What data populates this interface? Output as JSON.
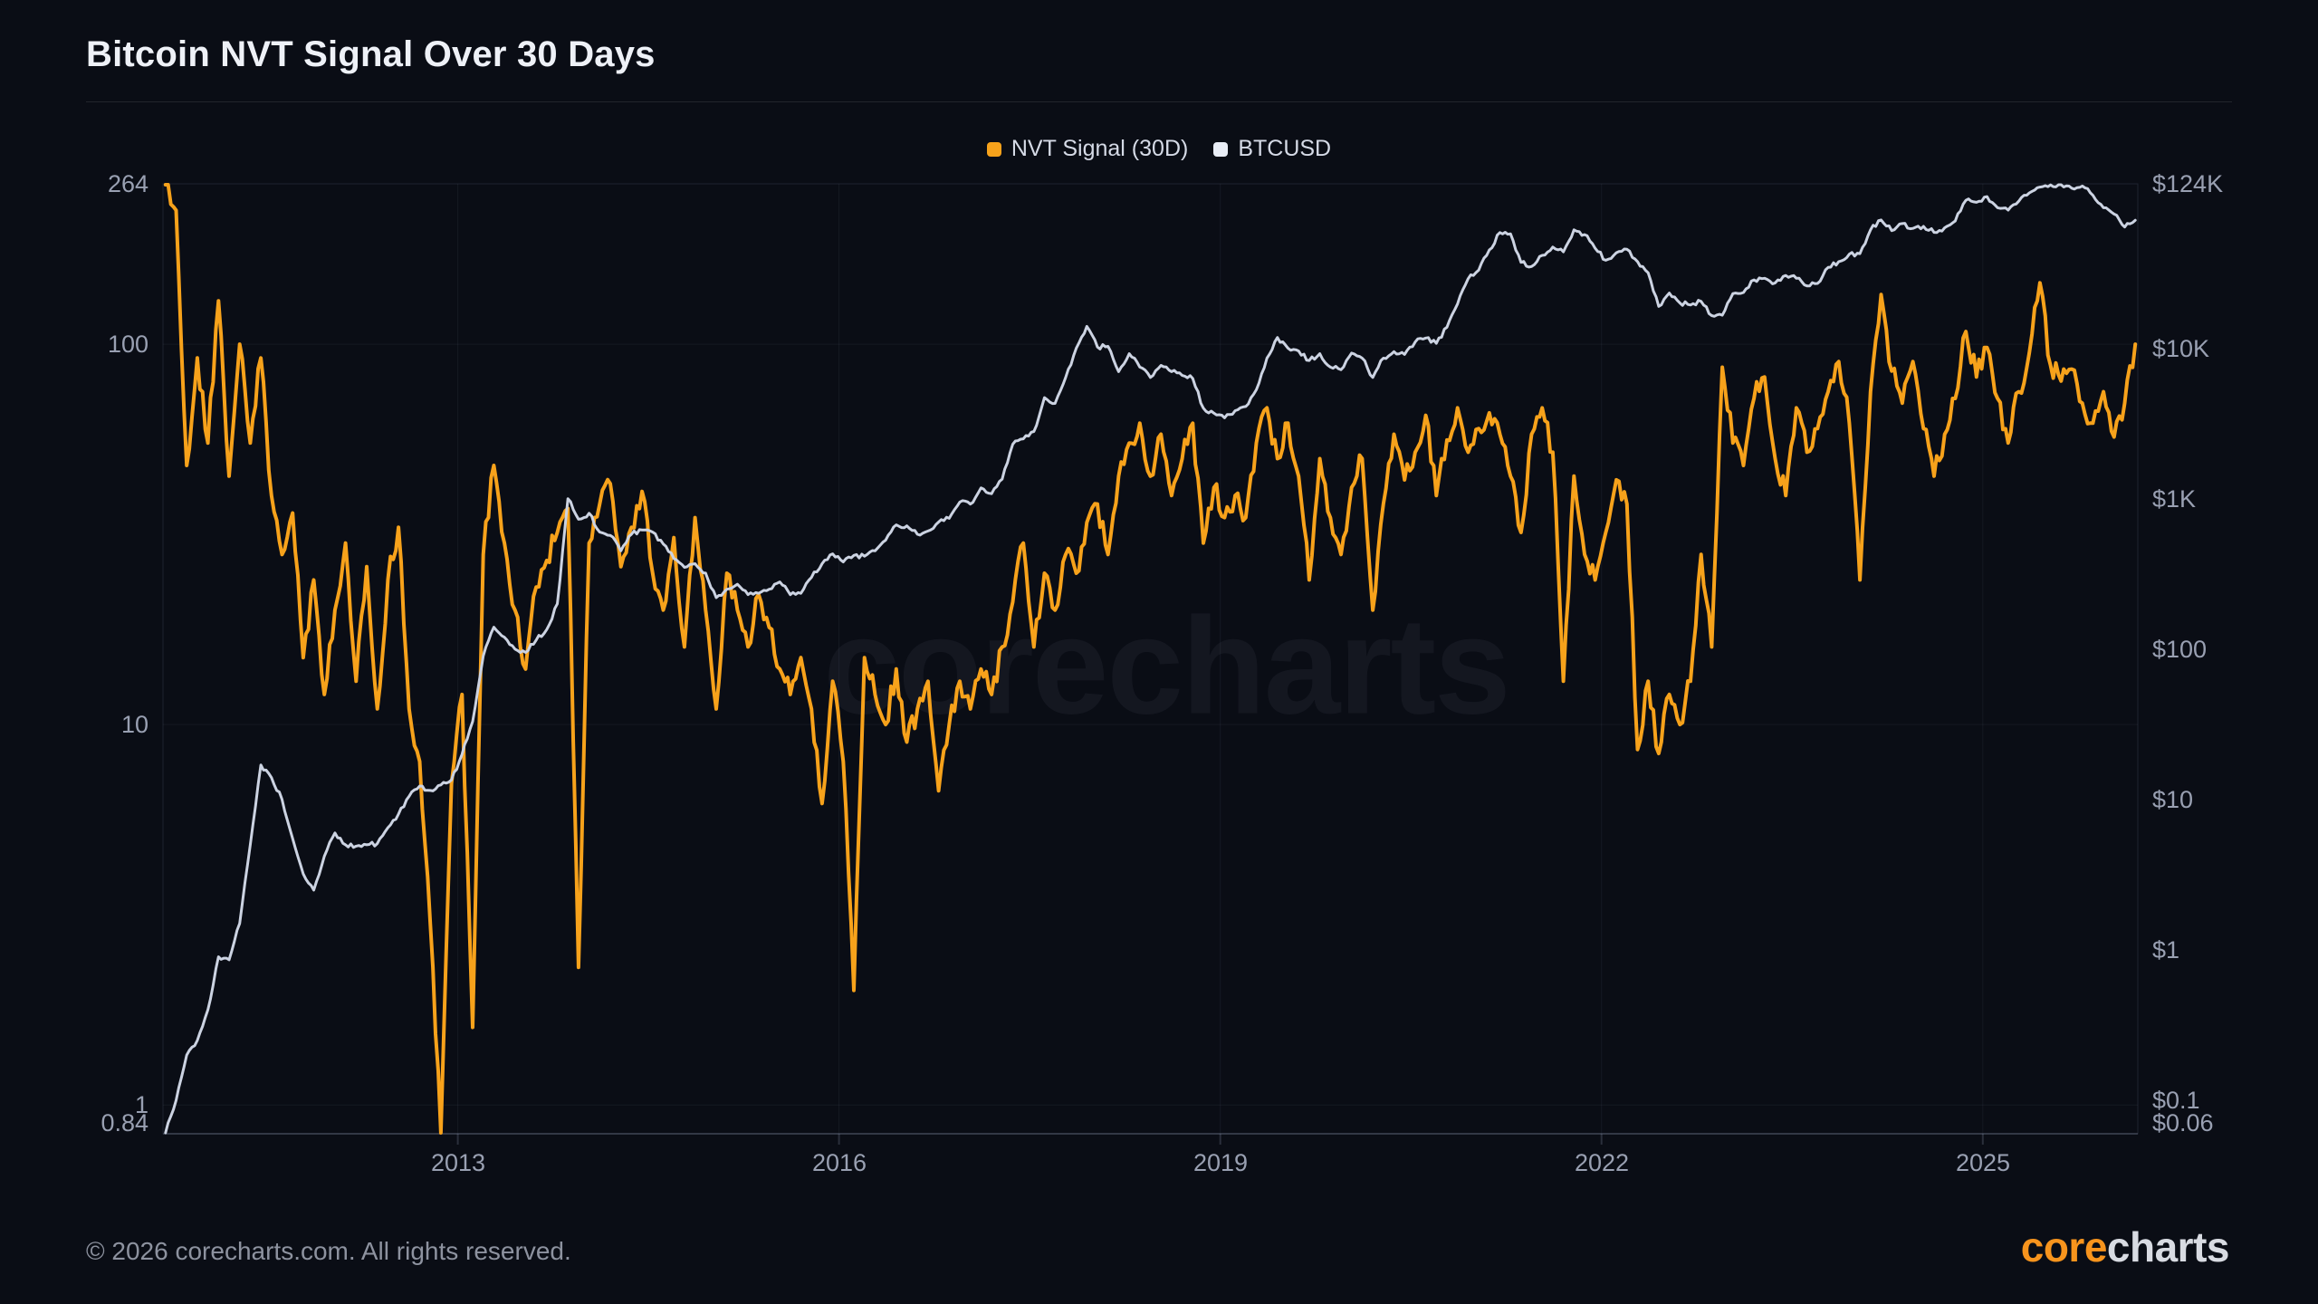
{
  "page": {
    "title": "Bitcoin NVT Signal Over 30 Days",
    "watermark": "corecharts",
    "footer": {
      "copyright": "© 2026 corecharts.com. All rights reserved."
    },
    "brand": {
      "part1": "core",
      "part2": "charts"
    },
    "background": "#0a0d15"
  },
  "legend": [
    {
      "label": "NVT Signal (30D)",
      "color": "#f7a21b"
    },
    {
      "label": "BTCUSD",
      "color": "#e9edf6"
    }
  ],
  "chart_data": {
    "type": "line",
    "title": "Bitcoin NVT Signal Over 30 Days",
    "legend_position": "top-center",
    "grid": true,
    "x_axis": {
      "min": 2010.68,
      "max": 2026.22,
      "ticks": [
        2013,
        2016,
        2019,
        2022,
        2025
      ]
    },
    "left_axis": {
      "name": "NVT Signal (30D)",
      "scale": "log",
      "min": 0.84,
      "max": 264,
      "ticks": [
        {
          "v": 264,
          "label": "264"
        },
        {
          "v": 100,
          "label": "100"
        },
        {
          "v": 10,
          "label": "10"
        },
        {
          "v": 1,
          "label": "1"
        },
        {
          "v": 0.84,
          "label": "0.84"
        }
      ]
    },
    "right_axis": {
      "name": "BTCUSD",
      "scale": "log",
      "min": 0.06,
      "max": 124000,
      "ticks": [
        {
          "v": 124000,
          "label": "$124K"
        },
        {
          "v": 10000,
          "label": "$10K"
        },
        {
          "v": 1000,
          "label": "$1K"
        },
        {
          "v": 100,
          "label": "$100"
        },
        {
          "v": 10,
          "label": "$10"
        },
        {
          "v": 1,
          "label": "$1"
        },
        {
          "v": 0.1,
          "label": "$0.1"
        },
        {
          "v": 0.06,
          "label": "$0.06"
        }
      ]
    },
    "x_start": 2010.7,
    "x_step_years": 0.0833333,
    "series": [
      {
        "name": "NVT Signal (30D)",
        "axis": "left",
        "color": "#f7a21b",
        "width": 4,
        "values": [
          264,
          225,
          48,
          92,
          55,
          130,
          45,
          100,
          55,
          92,
          40,
          28,
          36,
          15,
          24,
          12,
          20,
          30,
          13,
          26,
          11,
          24,
          33,
          11,
          8,
          3,
          0.84,
          7,
          12,
          1.6,
          28,
          48,
          30,
          20,
          14,
          23,
          27,
          32,
          37,
          2.3,
          30,
          38,
          43,
          26,
          33,
          41,
          25,
          20,
          31,
          16,
          35,
          20,
          11,
          25,
          20,
          16,
          22,
          18,
          14,
          12,
          15,
          11,
          6.2,
          13,
          8,
          2,
          15,
          12,
          10,
          14,
          9,
          11,
          13,
          6.7,
          10,
          13,
          11,
          14,
          12,
          16,
          21,
          30,
          16,
          25,
          20,
          28,
          25,
          34,
          38,
          28,
          45,
          55,
          62,
          45,
          58,
          40,
          50,
          62,
          30,
          42,
          35,
          40,
          35,
          55,
          68,
          50,
          62,
          45,
          24,
          50,
          35,
          28,
          42,
          50,
          20,
          38,
          58,
          44,
          52,
          65,
          40,
          56,
          68,
          52,
          60,
          66,
          58,
          45,
          32,
          58,
          68,
          52,
          13,
          45,
          28,
          24,
          32,
          44,
          38,
          8.6,
          13,
          8.4,
          12,
          10,
          13,
          28,
          16,
          87,
          55,
          48,
          72,
          82,
          50,
          40,
          68,
          52,
          60,
          75,
          90,
          62,
          24,
          75,
          135,
          85,
          70,
          90,
          60,
          45,
          58,
          72,
          108,
          82,
          98,
          72,
          55,
          75,
          95,
          145,
          88,
          80,
          86,
          70,
          62,
          75,
          57,
          70,
          100
        ]
      },
      {
        "name": "BTCUSD",
        "axis": "right",
        "color": "#ccd3e2",
        "width": 3,
        "values": [
          0.06,
          0.1,
          0.2,
          0.25,
          0.4,
          0.9,
          0.86,
          1.5,
          5,
          17,
          14,
          10,
          5.5,
          3.2,
          2.5,
          4.2,
          6,
          5,
          4.9,
          5,
          5.1,
          6.5,
          8,
          10.5,
          12.3,
          11.5,
          12.5,
          13.5,
          20,
          33,
          90,
          140,
          120,
          100,
          95,
          115,
          135,
          200,
          1000,
          730,
          800,
          600,
          570,
          450,
          580,
          620,
          600,
          500,
          400,
          350,
          370,
          320,
          220,
          250,
          270,
          230,
          235,
          250,
          280,
          230,
          235,
          300,
          370,
          430,
          380,
          420,
          415,
          450,
          530,
          670,
          660,
          580,
          610,
          700,
          740,
          950,
          920,
          1180,
          1080,
          1350,
          2300,
          2500,
          2800,
          4700,
          4300,
          6400,
          10000,
          14000,
          10200,
          10300,
          7000,
          9200,
          7500,
          6400,
          7700,
          7000,
          6600,
          6300,
          4000,
          3700,
          3450,
          3850,
          4100,
          5300,
          8600,
          11800,
          10000,
          9600,
          8300,
          9200,
          7500,
          7200,
          9300,
          8600,
          6400,
          8600,
          9500,
          9100,
          11000,
          11700,
          10800,
          13800,
          19700,
          29000,
          33100,
          45100,
          58800,
          57700,
          37300,
          35000,
          41500,
          47100,
          43800,
          61300,
          57000,
          46200,
          38500,
          43200,
          45500,
          37700,
          31800,
          19000,
          23300,
          20000,
          19400,
          20500,
          16500,
          16600,
          23100,
          23500,
          28500,
          29200,
          27200,
          30500,
          29200,
          26000,
          27000,
          34500,
          37700,
          42300,
          42600,
          61200,
          71300,
          60600,
          67500,
          62700,
          64600,
          59000,
          63300,
          70200,
          96400,
          93400,
          102000,
          86000,
          83000,
          95000,
          108000,
          118000,
          122000,
          124000,
          116000,
          120000,
          104000,
          86000,
          78000,
          64000,
          71000
        ]
      }
    ]
  },
  "render": {
    "subdivisions": 4,
    "jitter_decades": [
      0.03,
      0.015
    ]
  }
}
